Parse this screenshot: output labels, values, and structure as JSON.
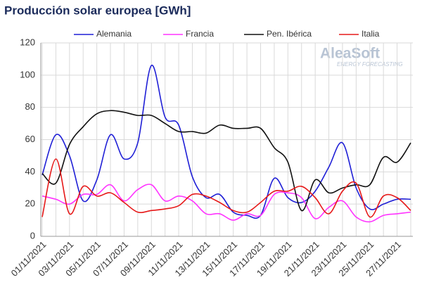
{
  "chart_data": {
    "type": "line",
    "title": "Producción solar europea [GWh]",
    "watermark": {
      "brand": "AleaSoft",
      "tagline": "ENERGY FORECASTING"
    },
    "categories": [
      "01/11/2021",
      null,
      "03/11/2021",
      null,
      "05/11/2021",
      null,
      "07/11/2021",
      null,
      "09/11/2021",
      null,
      "11/11/2021",
      null,
      "13/11/2021",
      null,
      "15/11/2021",
      null,
      "17/11/2021",
      null,
      "19/11/2021",
      null,
      "21/11/2021",
      null,
      "23/11/2021",
      null,
      "25/11/2021",
      null,
      "27/11/2021",
      null
    ],
    "series": [
      {
        "name": "Alemania",
        "color": "#1f1fd6",
        "values": [
          38,
          63,
          50,
          22,
          35,
          63,
          48,
          58,
          106,
          74,
          69,
          37,
          24,
          26,
          15,
          13,
          13,
          36,
          24,
          21,
          28,
          43,
          58,
          30,
          17,
          20,
          23,
          23
        ]
      },
      {
        "name": "Francia",
        "color": "#ff33ff",
        "values": [
          25,
          23,
          20,
          26,
          26,
          32,
          22,
          29,
          32,
          22,
          25,
          22,
          14,
          14,
          10,
          14,
          13,
          26,
          27,
          24,
          11,
          18,
          22,
          12,
          9,
          13,
          14,
          15
        ]
      },
      {
        "name": "Pen. Ibérica",
        "color": "#111111",
        "values": [
          39,
          33,
          57,
          68,
          76,
          78,
          77,
          75,
          75,
          70,
          65,
          65,
          64,
          69,
          67,
          67,
          67,
          55,
          46,
          16,
          35,
          27,
          30,
          32,
          32,
          49,
          46,
          58
        ]
      },
      {
        "name": "Italia",
        "color": "#e61919",
        "values": [
          12,
          48,
          14,
          31,
          25,
          27,
          21,
          15,
          16,
          17,
          19,
          26,
          25,
          21,
          16,
          15,
          21,
          28,
          28,
          31,
          24,
          14,
          28,
          33,
          12,
          25,
          24,
          16
        ]
      }
    ],
    "ylim": [
      0,
      120
    ],
    "yticks": [
      0,
      20,
      40,
      60,
      80,
      100,
      120
    ],
    "grid": true
  }
}
